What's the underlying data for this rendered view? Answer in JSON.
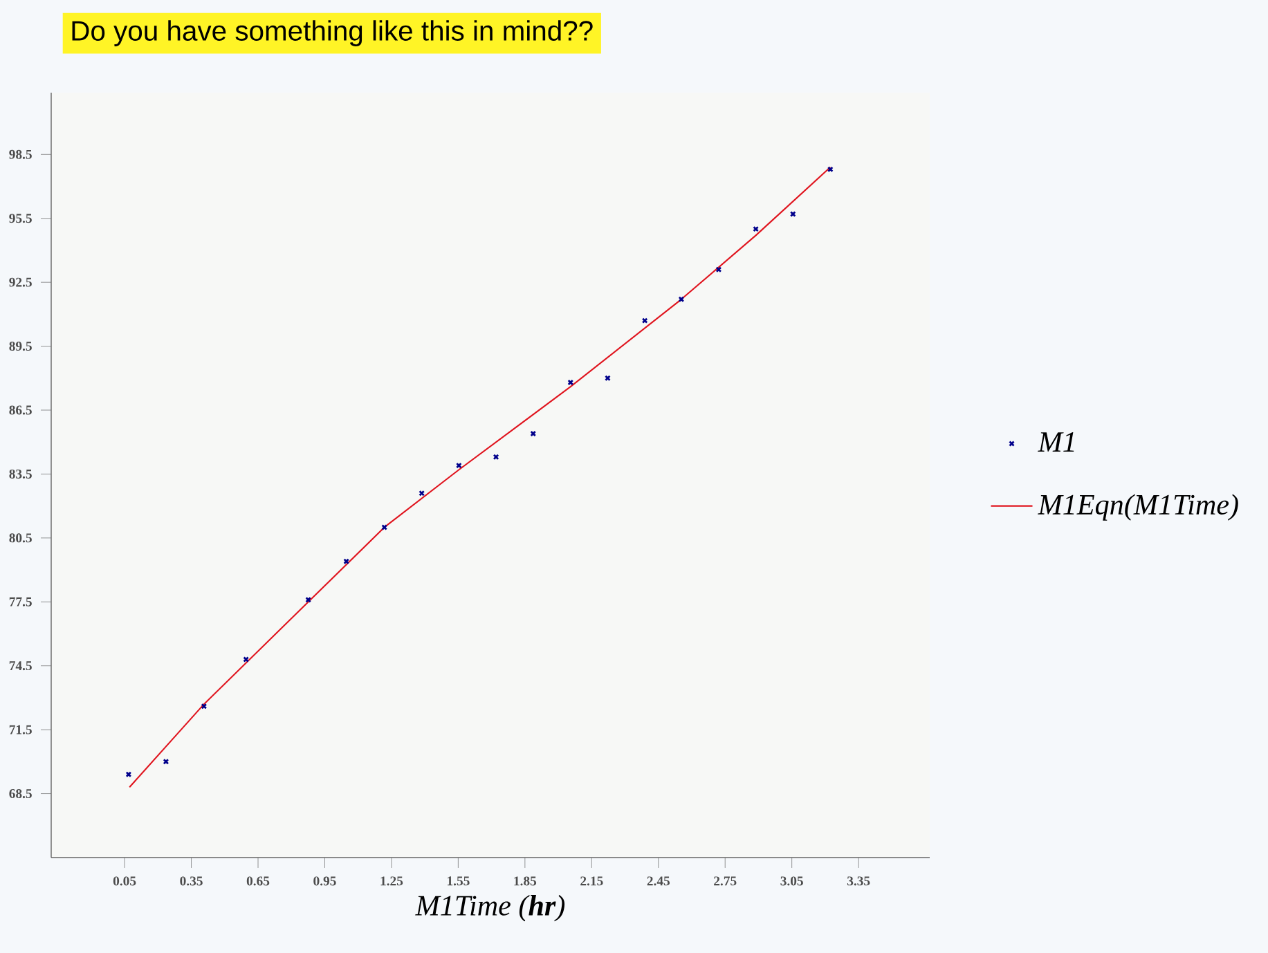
{
  "chart_data": {
    "type": "scatter",
    "title": "Do you have something like this in mind??",
    "xlabel": "M1Time  (**hr**)",
    "xlim": [
      -0.28,
      3.67
    ],
    "ylim": [
      65.5,
      101.4
    ],
    "xticks": [
      0.05,
      0.35,
      0.65,
      0.95,
      1.25,
      1.55,
      1.85,
      2.15,
      2.45,
      2.75,
      3.05,
      3.35
    ],
    "yticks": [
      68.5,
      71.5,
      74.5,
      77.5,
      80.5,
      83.5,
      86.5,
      89.5,
      92.5,
      95.5,
      98.5
    ],
    "grid": false,
    "legend": "right",
    "line_style": "solid",
    "series": [
      {
        "name": "M1",
        "marker": "cross",
        "color": "#00008b",
        "x": [
          0.068,
          0.236,
          0.407,
          0.596,
          0.876,
          1.047,
          1.218,
          1.386,
          1.553,
          1.72,
          1.887,
          2.055,
          2.222,
          2.389,
          2.553,
          2.721,
          2.888,
          3.055,
          3.223
        ],
        "values": [
          69.4,
          70.0,
          72.6,
          74.8,
          77.6,
          79.4,
          81.0,
          82.6,
          83.9,
          84.3,
          85.4,
          87.8,
          88.0,
          90.7,
          91.7,
          93.1,
          95.0,
          95.7,
          97.8
        ]
      },
      {
        "name": "M1Eqn(M1Time)",
        "type": "line",
        "marker": "none",
        "color": "#e0141e",
        "x": [
          0.072,
          0.407,
          0.876,
          1.218,
          1.553,
          2.055,
          2.553,
          2.888,
          3.223
        ],
        "values": [
          68.8,
          72.7,
          77.5,
          81.0,
          83.7,
          87.6,
          91.7,
          94.7,
          97.9
        ]
      }
    ]
  }
}
